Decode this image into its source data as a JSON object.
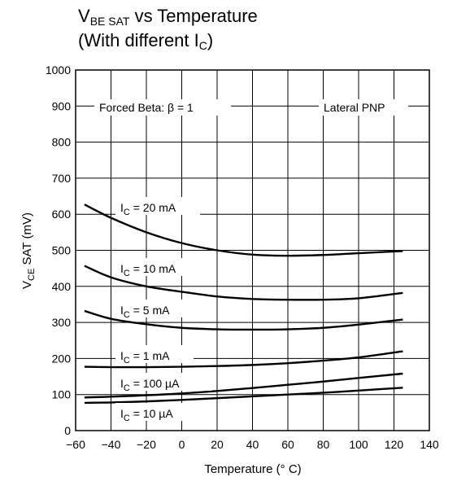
{
  "title": {
    "line1_main": "V",
    "line1_sub": "BE SAT",
    "line1_rest": " vs Temperature",
    "line2_main": "(With different I",
    "line2_sub": "C",
    "line2_rest": ")"
  },
  "chart_data": {
    "type": "line",
    "xlabel": "Temperature (° C)",
    "ylabel_main": "V",
    "ylabel_sub": "CE",
    "ylabel_rest": " SAT (mV)",
    "xlim": [
      -60,
      140
    ],
    "ylim": [
      0,
      1000
    ],
    "xticks": [
      "-60",
      "-40",
      "-20",
      "0",
      "20",
      "40",
      "60",
      "80",
      "100",
      "120",
      "140"
    ],
    "yticks": [
      "0",
      "100",
      "200",
      "300",
      "400",
      "500",
      "600",
      "700",
      "800",
      "900",
      "1000"
    ],
    "grid": true,
    "annotations": {
      "forced_beta": "Forced Beta: β = 1",
      "lateral": "Lateral PNP"
    },
    "series": [
      {
        "name": "I_C = 20 mA",
        "label_main": "I",
        "label_sub": "C",
        "label_rest": " = 20 mA",
        "x": [
          -55,
          -40,
          -20,
          0,
          20,
          40,
          60,
          80,
          100,
          125
        ],
        "y": [
          627,
          590,
          550,
          520,
          500,
          488,
          485,
          487,
          492,
          498
        ]
      },
      {
        "name": "I_C = 10 mA",
        "label_main": "I",
        "label_sub": "C",
        "label_rest": " = 10 mA",
        "x": [
          -55,
          -40,
          -20,
          0,
          20,
          40,
          60,
          80,
          100,
          125
        ],
        "y": [
          457,
          425,
          400,
          385,
          372,
          365,
          363,
          363,
          367,
          382
        ]
      },
      {
        "name": "I_C = 5 mA",
        "label_main": "I",
        "label_sub": "C",
        "label_rest": " = 5 mA",
        "x": [
          -55,
          -40,
          -20,
          0,
          20,
          40,
          60,
          80,
          100,
          125
        ],
        "y": [
          332,
          310,
          295,
          285,
          281,
          280,
          281,
          285,
          294,
          308
        ]
      },
      {
        "name": "I_C = 1 mA",
        "label_main": "I",
        "label_sub": "C",
        "label_rest": " = 1 mA",
        "x": [
          -55,
          -40,
          -20,
          0,
          20,
          40,
          60,
          80,
          100,
          125
        ],
        "y": [
          177,
          176,
          176,
          177,
          179,
          182,
          187,
          194,
          203,
          220
        ]
      },
      {
        "name": "I_C = 100 µA",
        "label_main": "I",
        "label_sub": "C",
        "label_rest": " = 100 µA",
        "x": [
          -55,
          -40,
          -20,
          0,
          20,
          40,
          60,
          80,
          100,
          125
        ],
        "y": [
          92,
          94,
          98,
          103,
          110,
          118,
          127,
          136,
          146,
          158
        ]
      },
      {
        "name": "I_C = 10 µA",
        "label_main": "I",
        "label_sub": "C",
        "label_rest": " = 10 µA",
        "x": [
          -55,
          -40,
          -20,
          0,
          20,
          40,
          60,
          80,
          100,
          125
        ],
        "y": [
          77,
          78,
          81,
          85,
          90,
          95,
          100,
          105,
          111,
          119
        ]
      }
    ]
  }
}
